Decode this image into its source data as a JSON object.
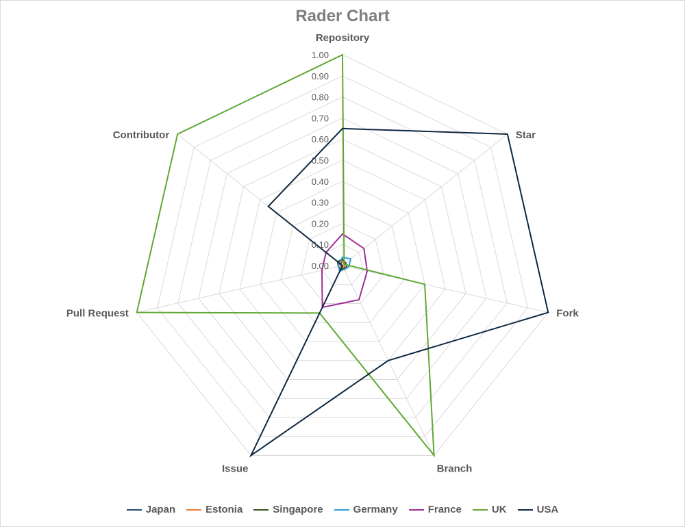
{
  "chart_data": {
    "type": "radar",
    "title": "Rader Chart",
    "axes": [
      "Repository",
      "Star",
      "Fork",
      "Branch",
      "Issue",
      "Pull Request",
      "Contributor"
    ],
    "rlim": [
      0,
      1
    ],
    "tick_labels": [
      "0.00",
      "0.10",
      "0.20",
      "0.30",
      "0.40",
      "0.50",
      "0.60",
      "0.70",
      "0.80",
      "0.90",
      "1.00"
    ],
    "grid": true,
    "legend_position": "bottom",
    "series": [
      {
        "name": "Japan",
        "color": "#1f4e79",
        "values": [
          0.03,
          0.01,
          0.01,
          0.02,
          0.01,
          0.01,
          0.01
        ]
      },
      {
        "name": "Estonia",
        "color": "#ed7d31",
        "values": [
          0.02,
          0.01,
          0.01,
          0.01,
          0.01,
          0.01,
          0.02
        ]
      },
      {
        "name": "Singapore",
        "color": "#375623",
        "values": [
          0.03,
          0.02,
          0.02,
          0.02,
          0.02,
          0.02,
          0.03
        ]
      },
      {
        "name": "Germany",
        "color": "#2e9bd6",
        "values": [
          0.04,
          0.05,
          0.03,
          0.02,
          0.03,
          0.02,
          0.02
        ]
      },
      {
        "name": "France",
        "color": "#a02b93",
        "values": [
          0.15,
          0.13,
          0.12,
          0.18,
          0.22,
          0.1,
          0.1
        ]
      },
      {
        "name": "UK",
        "color": "#5ea832",
        "values": [
          1.0,
          0.01,
          0.4,
          1.0,
          0.25,
          1.0,
          1.0
        ]
      },
      {
        "name": "USA",
        "color": "#0e2841",
        "values": [
          0.65,
          1.0,
          1.0,
          0.5,
          1.0,
          0.0,
          0.45
        ]
      }
    ]
  }
}
